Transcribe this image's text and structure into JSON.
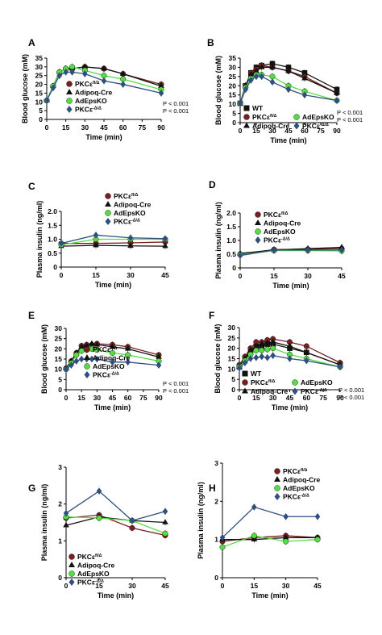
{
  "colors": {
    "PKCe_flox": "#7a1f1f",
    "Adipoq-Cre": "#111111",
    "AdEpsKO": "#55dd44",
    "PKCe_delta": "#2f4f7f",
    "WT": "#111111"
  },
  "legend_labels": {
    "WT": "WT",
    "PKCe_flox": "PKCε",
    "PKCe_flox_sup": "fl/Δ",
    "Adipoq-Cre": "Adipoq-Cre",
    "AdEpsKO": "AdEpsKO",
    "PKCe_delta": "PKCε",
    "PKCe_delta_sup": "-Δ/Δ"
  },
  "chart_data": [
    {
      "panel": "A",
      "type": "line",
      "xlabel": "Time (min)",
      "ylabel": "Blood glucose (mM)",
      "x": [
        0,
        5,
        10,
        15,
        20,
        30,
        45,
        60,
        90
      ],
      "xticks": [
        0,
        15,
        30,
        45,
        60,
        75,
        90
      ],
      "xlim": [
        0,
        90
      ],
      "ylim": [
        0,
        35
      ],
      "yticks": [
        0,
        5,
        10,
        15,
        20,
        25,
        30,
        35
      ],
      "legend": [
        "PKCe_flox",
        "Adipoq-Cre",
        "AdEpsKO",
        "PKCe_delta"
      ],
      "annotations": [
        "P < 0.001",
        "P < 0.001"
      ],
      "series": [
        {
          "key": "PKCe_flox",
          "marker": "circle",
          "values": [
            10.8,
            19,
            27,
            29,
            29,
            30,
            29,
            26,
            20
          ]
        },
        {
          "key": "Adipoq-Cre",
          "marker": "triangle",
          "values": [
            10.8,
            19,
            27,
            29,
            29,
            30,
            29,
            26,
            19
          ]
        },
        {
          "key": "AdEpsKO",
          "marker": "circle",
          "values": [
            10.8,
            19,
            27,
            29,
            30,
            28,
            25,
            23,
            17
          ]
        },
        {
          "key": "PKCe_delta",
          "marker": "diamond",
          "values": [
            10.8,
            18,
            25,
            27,
            27,
            26,
            22,
            20,
            15
          ]
        }
      ]
    },
    {
      "panel": "B",
      "type": "line",
      "xlabel": "Time (min)",
      "ylabel": "Blood glucose (mM)",
      "x": [
        0,
        5,
        10,
        15,
        20,
        30,
        45,
        60,
        90
      ],
      "xticks": [
        0,
        15,
        30,
        45,
        60,
        75,
        90
      ],
      "xlim": [
        0,
        90
      ],
      "ylim": [
        0,
        35
      ],
      "yticks": [
        0,
        5,
        10,
        15,
        20,
        25,
        30,
        35
      ],
      "legend": [
        "WT",
        "PKCe_flox",
        "AdEpsKO",
        "Adipoq-Cre",
        "PKCe_delta"
      ],
      "annotations": [
        "P < 0.001",
        "P < 0.001"
      ],
      "series": [
        {
          "key": "WT",
          "marker": "square",
          "values": [
            10.5,
            20,
            27,
            30,
            31,
            32,
            30,
            27,
            18
          ]
        },
        {
          "key": "PKCe_flox",
          "marker": "circle",
          "values": [
            10.5,
            20,
            27,
            29,
            31,
            30,
            28,
            25,
            16
          ]
        },
        {
          "key": "Adipoq-Cre",
          "marker": "triangle",
          "values": [
            10.5,
            20,
            26,
            28,
            30,
            30,
            28,
            24,
            16
          ]
        },
        {
          "key": "AdEpsKO",
          "marker": "circle",
          "values": [
            10.5,
            19,
            24,
            26,
            26,
            25,
            20,
            17,
            12
          ]
        },
        {
          "key": "PKCe_delta",
          "marker": "diamond",
          "values": [
            10.5,
            18,
            23,
            25,
            25,
            22,
            18,
            15,
            12
          ]
        }
      ]
    },
    {
      "panel": "C",
      "type": "line",
      "xlabel": "Time (min)",
      "ylabel": "Plasma insulin (ng/ml)",
      "x": [
        0,
        15,
        30,
        45
      ],
      "xticks": [
        0,
        15,
        30,
        45
      ],
      "xlim": [
        0,
        45
      ],
      "ylim": [
        0,
        2.0
      ],
      "yticks": [
        0,
        0.5,
        1.0,
        1.5,
        2.0
      ],
      "yticklabels": [
        "0",
        "0.5",
        "1.0",
        "1.5",
        "2.0"
      ],
      "legend": [
        "PKCe_flox",
        "Adipoq-Cre",
        "AdEpsKO",
        "PKCe_delta"
      ],
      "series": [
        {
          "key": "PKCe_flox",
          "marker": "circle",
          "values": [
            0.85,
            0.85,
            0.87,
            0.9
          ]
        },
        {
          "key": "Adipoq-Cre",
          "marker": "triangle",
          "values": [
            0.75,
            0.78,
            0.76,
            0.75
          ]
        },
        {
          "key": "AdEpsKO",
          "marker": "circle",
          "values": [
            0.8,
            1.0,
            1.0,
            1.0
          ]
        },
        {
          "key": "PKCe_delta",
          "marker": "diamond",
          "values": [
            0.85,
            1.15,
            1.05,
            1.02
          ]
        }
      ]
    },
    {
      "panel": "D",
      "type": "line",
      "xlabel": "Time (min)",
      "ylabel": "Plasma insulin (ng/ml)",
      "x": [
        0,
        15,
        30,
        45
      ],
      "xticks": [
        0,
        15,
        30,
        45
      ],
      "xlim": [
        0,
        45
      ],
      "ylim": [
        0,
        2.0
      ],
      "yticks": [
        0,
        0.5,
        1.0,
        1.5,
        2.0
      ],
      "yticklabels": [
        "0",
        "0.5",
        "1.0",
        "1.5",
        "2.0"
      ],
      "legend": [
        "PKCe_flox",
        "Adipoq-Cre",
        "AdEpsKO",
        "PKCe_delta"
      ],
      "series": [
        {
          "key": "PKCe_flox",
          "marker": "circle",
          "values": [
            0.5,
            0.67,
            0.68,
            0.7
          ]
        },
        {
          "key": "Adipoq-Cre",
          "marker": "triangle",
          "values": [
            0.53,
            0.65,
            0.7,
            0.75
          ]
        },
        {
          "key": "AdEpsKO",
          "marker": "circle",
          "values": [
            0.48,
            0.63,
            0.63,
            0.62
          ]
        },
        {
          "key": "PKCe_delta",
          "marker": "diamond",
          "values": [
            0.45,
            0.65,
            0.65,
            0.65
          ]
        }
      ]
    },
    {
      "panel": "E",
      "type": "line",
      "xlabel": "Time (min)",
      "ylabel": "Blood glucose (mM)",
      "x": [
        0,
        5,
        10,
        15,
        20,
        25,
        30,
        45,
        60,
        90
      ],
      "xticks": [
        0,
        15,
        30,
        45,
        60,
        75,
        90
      ],
      "xlim": [
        0,
        90
      ],
      "ylim": [
        0,
        30
      ],
      "yticks": [
        0,
        5,
        10,
        15,
        20,
        25,
        30
      ],
      "legend": [
        "PKCe_flox",
        "Adipoq-Cre",
        "AdEpsKO",
        "PKCe_delta"
      ],
      "annotations": [
        "P < 0.001",
        "P < 0.001"
      ],
      "series": [
        {
          "key": "PKCe_flox",
          "marker": "circle",
          "values": [
            10.5,
            14,
            18,
            21.5,
            22,
            22,
            22.5,
            22,
            21,
            17
          ]
        },
        {
          "key": "Adipoq-Cre",
          "marker": "triangle",
          "values": [
            10.5,
            14,
            18,
            21,
            21.5,
            22.5,
            22,
            21,
            20,
            16
          ]
        },
        {
          "key": "AdEpsKO",
          "marker": "circle",
          "values": [
            10,
            13,
            17,
            19,
            19.5,
            20,
            19.5,
            18,
            17,
            14
          ]
        },
        {
          "key": "PKCe_delta",
          "marker": "diamond",
          "values": [
            10,
            12,
            14,
            15,
            15,
            15,
            15,
            13.5,
            13.5,
            12
          ]
        }
      ]
    },
    {
      "panel": "F",
      "type": "line",
      "xlabel": "Time (min)",
      "ylabel": "Blood glucose (mM)",
      "x": [
        0,
        5,
        10,
        15,
        20,
        25,
        30,
        45,
        60,
        90
      ],
      "xticks": [
        0,
        15,
        30,
        45,
        60,
        75,
        90
      ],
      "xlim": [
        0,
        90
      ],
      "ylim": [
        0,
        30
      ],
      "yticks": [
        0,
        5,
        10,
        15,
        20,
        25,
        30
      ],
      "legend": [
        "WT",
        "PKCe_flox",
        "AdEpsKO",
        "Adipoq-Cre",
        "PKCe_delta"
      ],
      "annotations": [
        "P < 0.001",
        "P < 0.001"
      ],
      "series": [
        {
          "key": "WT",
          "marker": "square",
          "values": [
            11,
            14,
            18,
            21,
            21,
            22,
            22,
            20,
            18,
            12
          ]
        },
        {
          "key": "PKCe_flox",
          "marker": "circle",
          "values": [
            12,
            16,
            20,
            23,
            23,
            24,
            24.5,
            23,
            21,
            13
          ]
        },
        {
          "key": "Adipoq-Cre",
          "marker": "triangle",
          "values": [
            11,
            15,
            19,
            21,
            22,
            22.5,
            23,
            21,
            18,
            12
          ]
        },
        {
          "key": "AdEpsKO",
          "marker": "circle",
          "values": [
            11,
            14,
            17,
            19,
            19,
            19.5,
            20,
            17,
            15,
            11
          ]
        },
        {
          "key": "PKCe_delta",
          "marker": "diamond",
          "values": [
            10.5,
            13,
            15,
            15.5,
            16,
            15.5,
            16.5,
            15,
            14,
            11
          ]
        }
      ]
    },
    {
      "panel": "G",
      "type": "line",
      "xlabel": "Time (min)",
      "ylabel": "Plasma insulin (ng/ml)",
      "x": [
        0,
        15,
        30,
        45
      ],
      "xticks": [
        0,
        15,
        30,
        45
      ],
      "xlim": [
        0,
        45
      ],
      "ylim": [
        0,
        3
      ],
      "yticks": [
        0,
        1,
        2,
        3
      ],
      "yticklabels": [
        "0",
        "1",
        "2",
        "3"
      ],
      "legend": [
        "PKCe_flox",
        "Adipoq-Cre",
        "AdEpsKO",
        "PKCe_delta"
      ],
      "series": [
        {
          "key": "PKCe_flox",
          "marker": "circle",
          "values": [
            1.62,
            1.7,
            1.35,
            1.15
          ]
        },
        {
          "key": "Adipoq-Cre",
          "marker": "triangle",
          "values": [
            1.42,
            1.65,
            1.55,
            1.5
          ]
        },
        {
          "key": "AdEpsKO",
          "marker": "circle",
          "values": [
            1.65,
            1.62,
            1.55,
            1.2
          ]
        },
        {
          "key": "PKCe_delta",
          "marker": "diamond",
          "values": [
            1.75,
            2.35,
            1.55,
            1.8
          ]
        }
      ]
    },
    {
      "panel": "H",
      "type": "line",
      "xlabel": "Time (min)",
      "ylabel": "Plasma insulin (ng/ml)",
      "x": [
        0,
        15,
        30,
        45
      ],
      "xticks": [
        0,
        15,
        30,
        45
      ],
      "xlim": [
        0,
        45
      ],
      "ylim": [
        0,
        3
      ],
      "yticks": [
        0,
        1,
        2,
        3
      ],
      "yticklabels": [
        "0",
        "1",
        "2",
        "3"
      ],
      "legend": [
        "PKCe_flox",
        "Adipoq-Cre",
        "AdEpsKO",
        "PKCe_delta"
      ],
      "series": [
        {
          "key": "PKCe_flox",
          "marker": "circle",
          "values": [
            0.95,
            1.05,
            1.1,
            1.05
          ]
        },
        {
          "key": "Adipoq-Cre",
          "marker": "triangle",
          "values": [
            1.0,
            1.0,
            1.05,
            1.05
          ]
        },
        {
          "key": "AdEpsKO",
          "marker": "circle",
          "values": [
            0.8,
            1.1,
            0.95,
            1.0
          ]
        },
        {
          "key": "PKCe_delta",
          "marker": "diamond",
          "values": [
            1.05,
            1.85,
            1.6,
            1.6
          ]
        }
      ]
    }
  ]
}
